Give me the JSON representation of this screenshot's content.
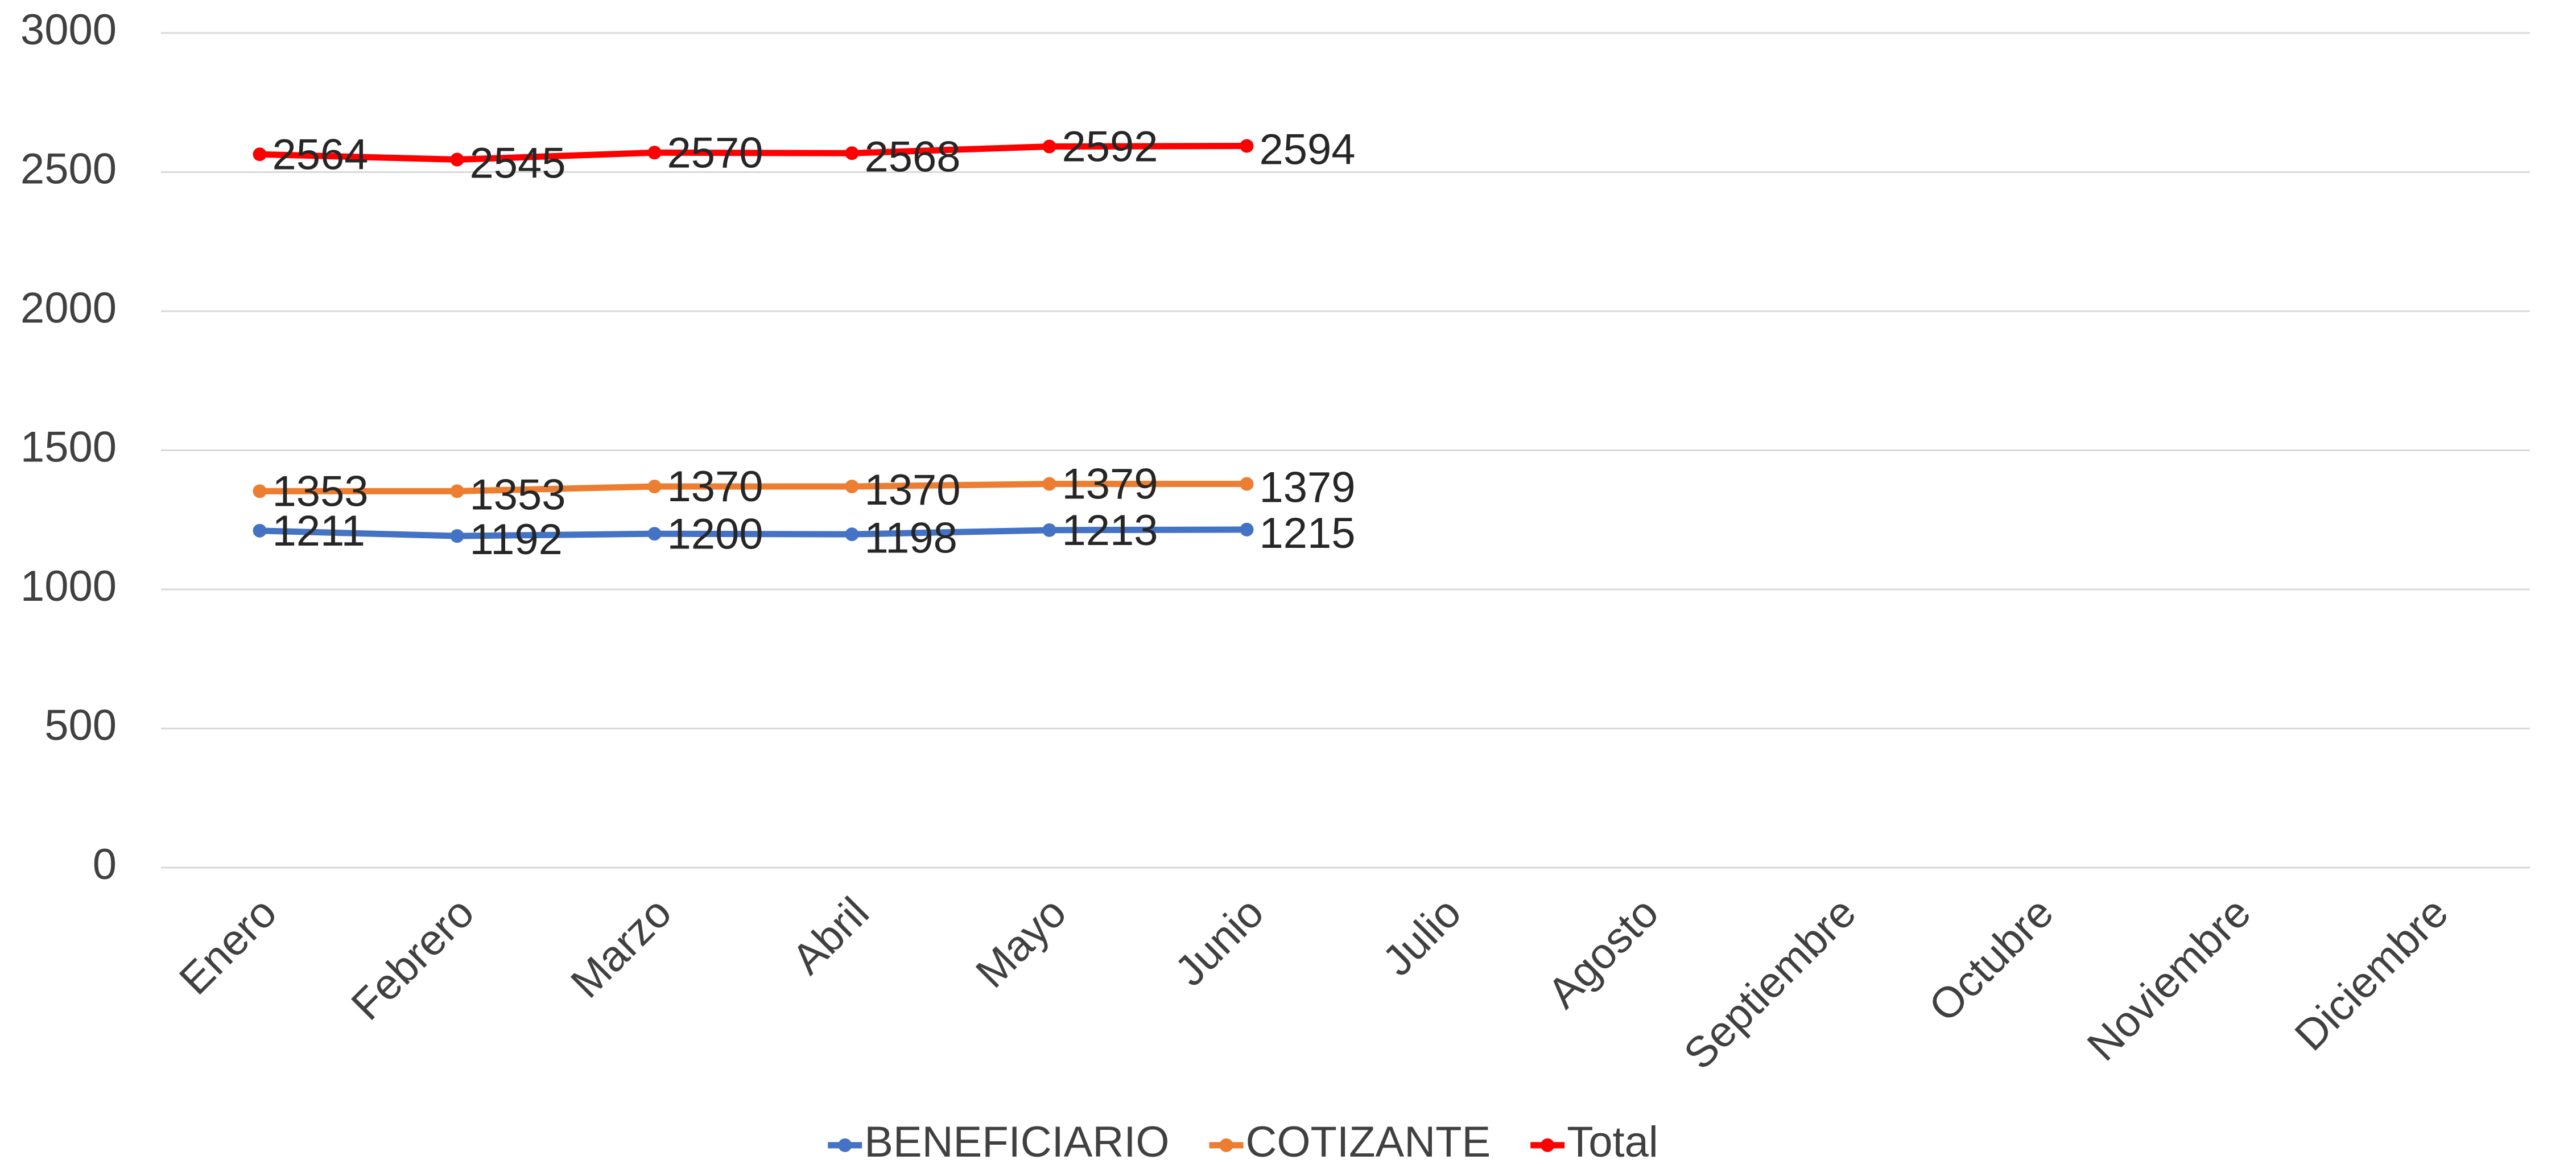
{
  "chart_data": {
    "type": "line",
    "categories": [
      "Enero",
      "Febrero",
      "Marzo",
      "Abril",
      "Mayo",
      "Junio",
      "Julio",
      "Agosto",
      "Septiembre",
      "Octubre",
      "Noviembre",
      "Diciembre"
    ],
    "series": [
      {
        "name": "BENEFICIARIO",
        "color": "#4472c4",
        "values": [
          1211,
          1192,
          1200,
          1198,
          1213,
          1215,
          null,
          null,
          null,
          null,
          null,
          null
        ]
      },
      {
        "name": "COTIZANTE",
        "color": "#ed7d31",
        "values": [
          1353,
          1353,
          1370,
          1370,
          1379,
          1379,
          null,
          null,
          null,
          null,
          null,
          null
        ]
      },
      {
        "name": "Total",
        "color": "#ff0000",
        "values": [
          2564,
          2545,
          2570,
          2568,
          2592,
          2594,
          null,
          null,
          null,
          null,
          null,
          null
        ]
      }
    ],
    "ylim": [
      0,
      3000
    ],
    "yticks": [
      0,
      500,
      1000,
      1500,
      2000,
      2500,
      3000
    ],
    "grid": true,
    "legend": "bottom"
  }
}
